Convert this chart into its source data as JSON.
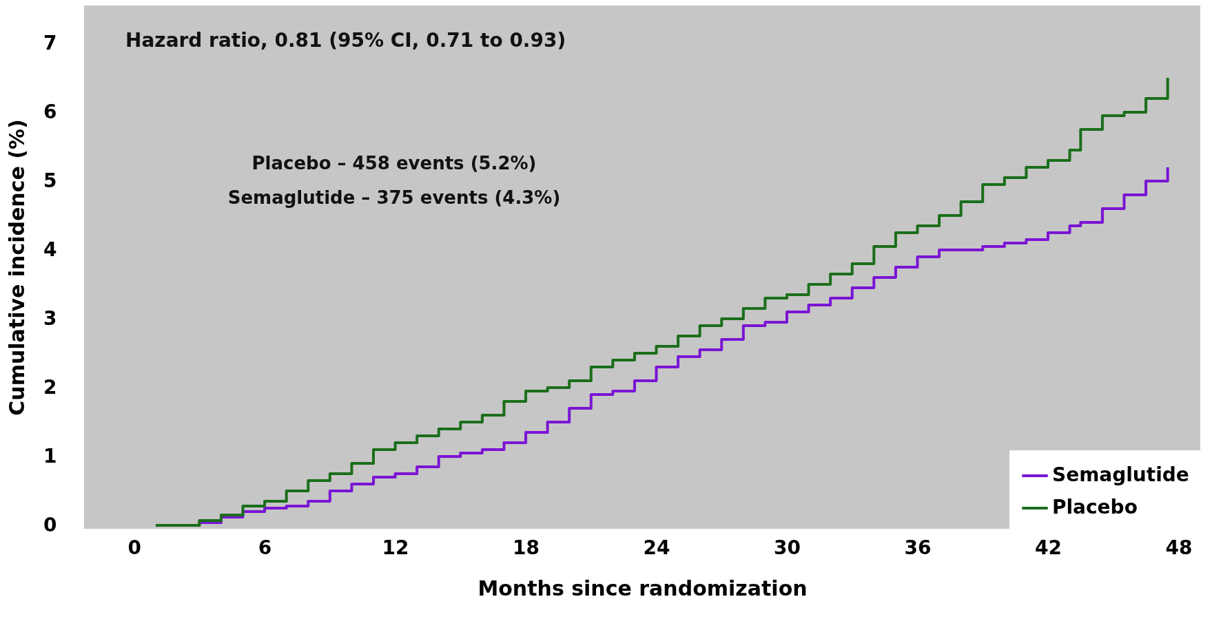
{
  "chart_data": {
    "type": "step",
    "xlabel": "Months since randomization",
    "ylabel": "Cumulative incidence (%)",
    "xlim": [
      -2.3,
      49
    ],
    "ylim": [
      -0.05,
      7.55
    ],
    "xticks": [
      0,
      6,
      12,
      18,
      24,
      30,
      36,
      42,
      48
    ],
    "yticks": [
      0,
      1,
      2,
      3,
      4,
      5,
      6,
      7
    ],
    "grid": false,
    "legend": "bottom right",
    "marker": "none",
    "line_style": "solid",
    "annotations": [
      "Hazard ratio, 0.81 (95% CI, 0.71 to 0.93)",
      "Placebo – 458 events (5.2%)",
      "Semaglutide – 375 events (4.3%)"
    ],
    "x": [
      1,
      3,
      4,
      5,
      6,
      7,
      8,
      9,
      10,
      11,
      12,
      13,
      14,
      15,
      16,
      17,
      18,
      19,
      20,
      21,
      22,
      23,
      24,
      25,
      26,
      27,
      28,
      29,
      30,
      31,
      32,
      33,
      34,
      35,
      36,
      37,
      38,
      39,
      40,
      41,
      42,
      43,
      43.5,
      44.5,
      45.5,
      46.5,
      47.5
    ],
    "series": [
      {
        "name": "Semaglutide",
        "color": "#7a14d4",
        "values": [
          0,
          0.04,
          0.12,
          0.2,
          0.25,
          0.28,
          0.35,
          0.5,
          0.6,
          0.7,
          0.75,
          0.85,
          1.0,
          1.05,
          1.1,
          1.2,
          1.35,
          1.5,
          1.7,
          1.9,
          1.95,
          2.1,
          2.3,
          2.45,
          2.55,
          2.7,
          2.9,
          2.95,
          3.1,
          3.2,
          3.3,
          3.45,
          3.6,
          3.75,
          3.9,
          4.0,
          4.0,
          4.05,
          4.1,
          4.15,
          4.25,
          4.35,
          4.4,
          4.6,
          4.8,
          5.0,
          5.2
        ]
      },
      {
        "name": "Placebo",
        "color": "#1a6e1a",
        "values": [
          0,
          0.07,
          0.15,
          0.28,
          0.35,
          0.5,
          0.65,
          0.75,
          0.9,
          1.1,
          1.2,
          1.3,
          1.4,
          1.5,
          1.6,
          1.8,
          1.95,
          2.0,
          2.1,
          2.3,
          2.4,
          2.5,
          2.6,
          2.75,
          2.9,
          3.0,
          3.15,
          3.3,
          3.35,
          3.5,
          3.65,
          3.8,
          4.05,
          4.25,
          4.35,
          4.5,
          4.7,
          4.95,
          5.05,
          5.2,
          5.3,
          5.45,
          5.75,
          5.95,
          6.0,
          6.2,
          6.5
        ]
      }
    ]
  }
}
